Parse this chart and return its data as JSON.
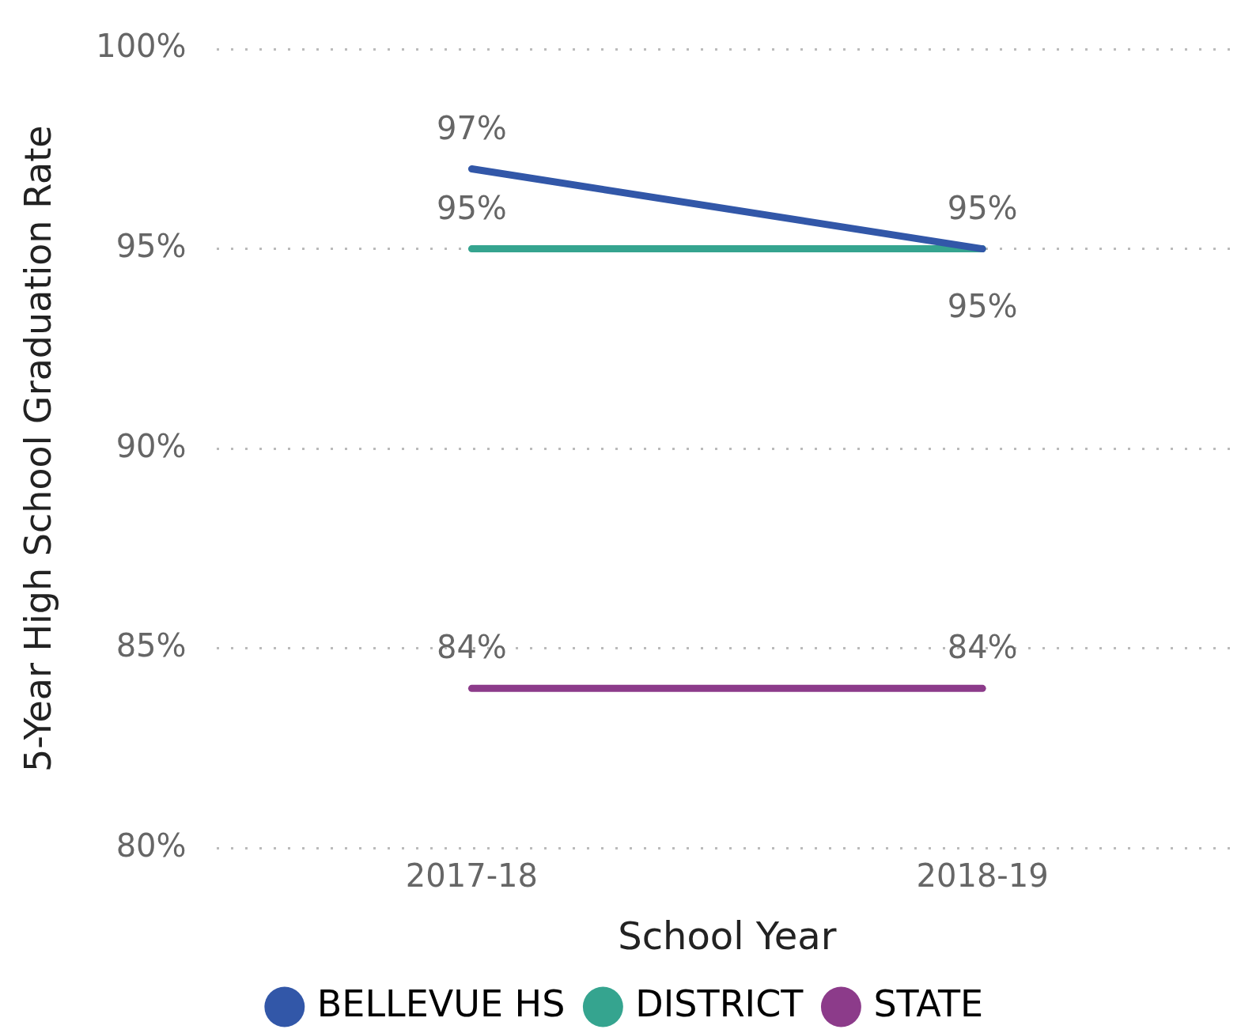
{
  "chart_data": {
    "type": "line",
    "xlabel": "School Year",
    "ylabel": "5-Year High School Graduation Rate",
    "categories": [
      "2017-18",
      "2018-19"
    ],
    "series": [
      {
        "name": "BELLEVUE HS",
        "color": "#3257a8",
        "values": [
          97,
          95
        ],
        "value_labels": [
          "97%",
          "95%"
        ]
      },
      {
        "name": "DISTRICT",
        "color": "#35a48f",
        "values": [
          95,
          95
        ],
        "value_labels": [
          "95%",
          "95%"
        ]
      },
      {
        "name": "STATE",
        "color": "#8c3b8a",
        "values": [
          84,
          84
        ],
        "value_labels": [
          "84%",
          "84%"
        ]
      }
    ],
    "ylim": [
      80,
      100
    ],
    "yticks": [
      {
        "value": 80,
        "label": "80%"
      },
      {
        "value": 85,
        "label": "85%"
      },
      {
        "value": 90,
        "label": "90%"
      },
      {
        "value": 95,
        "label": "95%"
      },
      {
        "value": 100,
        "label": "100%"
      }
    ],
    "grid": "y",
    "legend": "bottom",
    "marker": "none",
    "line_style": "solid"
  }
}
